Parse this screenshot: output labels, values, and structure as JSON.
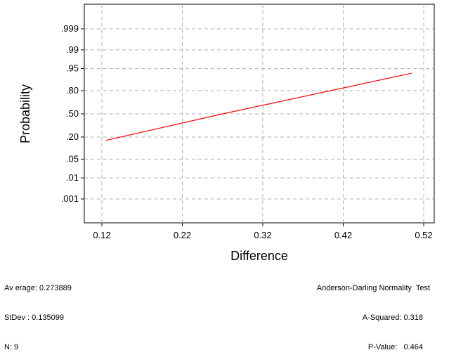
{
  "chart_data": {
    "type": "line",
    "subtype": "normal-probability-plot",
    "title": "",
    "xlabel": "Difference",
    "ylabel": "Probability",
    "xlim": [
      0.1,
      0.53
    ],
    "x_ticks": [
      0.12,
      0.22,
      0.32,
      0.42,
      0.52
    ],
    "x_tick_labels": [
      "0.12",
      "0.22",
      "0.32",
      "0.42",
      "0.52"
    ],
    "y_ticks": [
      0.001,
      0.01,
      0.05,
      0.2,
      0.5,
      0.8,
      0.95,
      0.99,
      0.999
    ],
    "y_tick_labels": [
      ".001",
      ".01",
      ".05",
      ".20",
      ".50",
      ".80",
      ".95",
      ".99",
      ".999"
    ],
    "grid": true,
    "line_color": "#ff0000",
    "series": [
      {
        "x": [
          0.125,
          0.27,
          0.505
        ],
        "y": [
          0.168,
          0.5,
          0.93
        ]
      }
    ]
  },
  "stats": {
    "average": "Av erage: 0.273889",
    "stdev": "StDev : 0.135099",
    "n": "N: 9"
  },
  "test": {
    "title": "Anderson-Darling Normality  Test",
    "a_squared": "A-Squared: 0.318",
    "p_value": "P-Value:   0.464"
  }
}
